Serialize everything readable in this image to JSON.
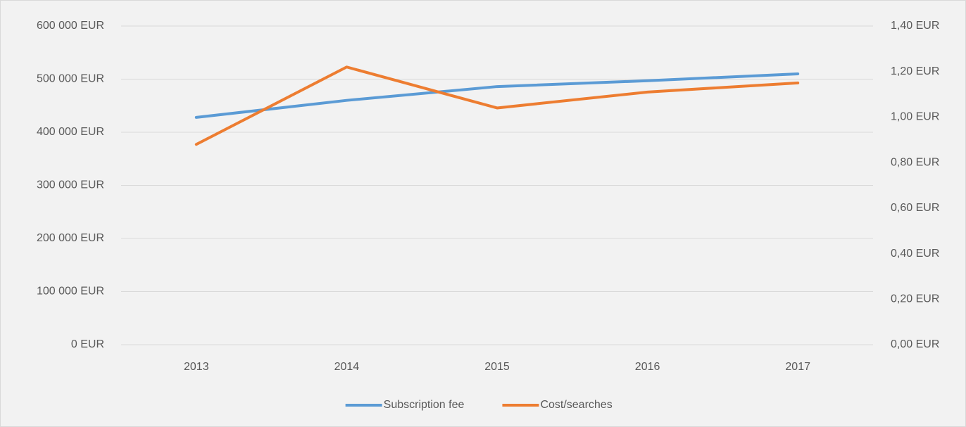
{
  "chart_data": {
    "type": "line",
    "categories": [
      "2013",
      "2014",
      "2015",
      "2016",
      "2017"
    ],
    "series": [
      {
        "name": "Subscription fee",
        "color": "#5b9bd5",
        "values": [
          428000,
          460000,
          486000,
          497000,
          510000
        ]
      },
      {
        "name": "Cost/searches",
        "color": "#ed7d31",
        "axis": "y2",
        "values": [
          0.88,
          1.22,
          1.04,
          1.11,
          1.15
        ]
      }
    ],
    "ylim": [
      0,
      600000
    ],
    "yticks": [
      {
        "value": 0,
        "label": "0 EUR"
      },
      {
        "value": 100000,
        "label": "100 000 EUR"
      },
      {
        "value": 200000,
        "label": "200 000 EUR"
      },
      {
        "value": 300000,
        "label": "300 000 EUR"
      },
      {
        "value": 400000,
        "label": "400 000 EUR"
      },
      {
        "value": 500000,
        "label": "500 000 EUR"
      },
      {
        "value": 600000,
        "label": "600 000 EUR"
      }
    ],
    "y2lim": [
      0,
      1.4
    ],
    "y2ticks": [
      {
        "value": 0,
        "label": "0,00 EUR"
      },
      {
        "value": 0.2,
        "label": "0,20 EUR"
      },
      {
        "value": 0.4,
        "label": "0,40 EUR"
      },
      {
        "value": 0.6,
        "label": "0,60 EUR"
      },
      {
        "value": 0.8,
        "label": "0,80 EUR"
      },
      {
        "value": 1.0,
        "label": "1,00 EUR"
      },
      {
        "value": 1.2,
        "label": "1,20 EUR"
      },
      {
        "value": 1.4,
        "label": "1,40 EUR"
      }
    ],
    "grid": true,
    "legend": "bottom"
  }
}
